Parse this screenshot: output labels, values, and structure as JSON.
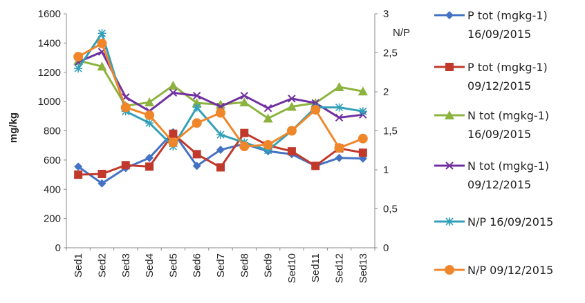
{
  "chart_data": {
    "type": "line",
    "categories": [
      "Sed1",
      "Sed2",
      "Sed3",
      "Sed4",
      "Sed5",
      "Sed6",
      "Sed7",
      "Sed8",
      "Sed9",
      "Sed10",
      "Sed11",
      "Sed12",
      "Sed13"
    ],
    "ylabel": "mg/kg",
    "y2label": "N/P",
    "ylim": [
      0,
      1600
    ],
    "y2lim": [
      0,
      3
    ],
    "yticks": [
      "0",
      "200",
      "400",
      "600",
      "800",
      "1000",
      "1200",
      "1400",
      "1600"
    ],
    "y2ticks": [
      "0",
      "0,5",
      "1",
      "1,5",
      "2",
      "2,5",
      "3"
    ],
    "grid": false,
    "legend_position": "right",
    "series": [
      {
        "name": "P tot (mgkg-1)\n16/09/2015",
        "axis": "left",
        "marker": "diamond",
        "color": "#4472C4",
        "values": [
          555,
          440,
          545,
          615,
          790,
          560,
          670,
          710,
          660,
          640,
          560,
          615,
          610
        ]
      },
      {
        "name": "P tot (mgkg-1)\n09/12/2015",
        "axis": "left",
        "marker": "square",
        "color": "#C0392B",
        "values": [
          500,
          505,
          565,
          555,
          780,
          640,
          550,
          785,
          700,
          660,
          560,
          680,
          650
        ]
      },
      {
        "name": "N tot (mgkg-1)\n16/09/2015",
        "axis": "left",
        "marker": "triangle",
        "color": "#8DB33F",
        "values": [
          1280,
          1240,
          970,
          995,
          1110,
          990,
          980,
          995,
          885,
          965,
          990,
          1100,
          1070
        ]
      },
      {
        "name": "N tot (mgkg-1)\n09/12/2015",
        "axis": "left",
        "marker": "x",
        "color": "#7030A0",
        "values": [
          1270,
          1340,
          1030,
          935,
          1060,
          1040,
          965,
          1040,
          955,
          1020,
          990,
          890,
          910
        ]
      },
      {
        "name": "N/P 16/09/2015",
        "axis": "right",
        "marker": "star",
        "color": "#31A0B8",
        "values": [
          2.3,
          2.75,
          1.75,
          1.6,
          1.3,
          1.8,
          1.45,
          1.35,
          1.25,
          1.5,
          1.8,
          1.8,
          1.75
        ]
      },
      {
        "name": "N/P 09/12/2015",
        "axis": "right",
        "marker": "circle",
        "color": "#F0862A",
        "values": [
          2.45,
          2.62,
          1.8,
          1.7,
          1.35,
          1.6,
          1.73,
          1.3,
          1.32,
          1.5,
          1.77,
          1.28,
          1.4
        ]
      }
    ]
  }
}
